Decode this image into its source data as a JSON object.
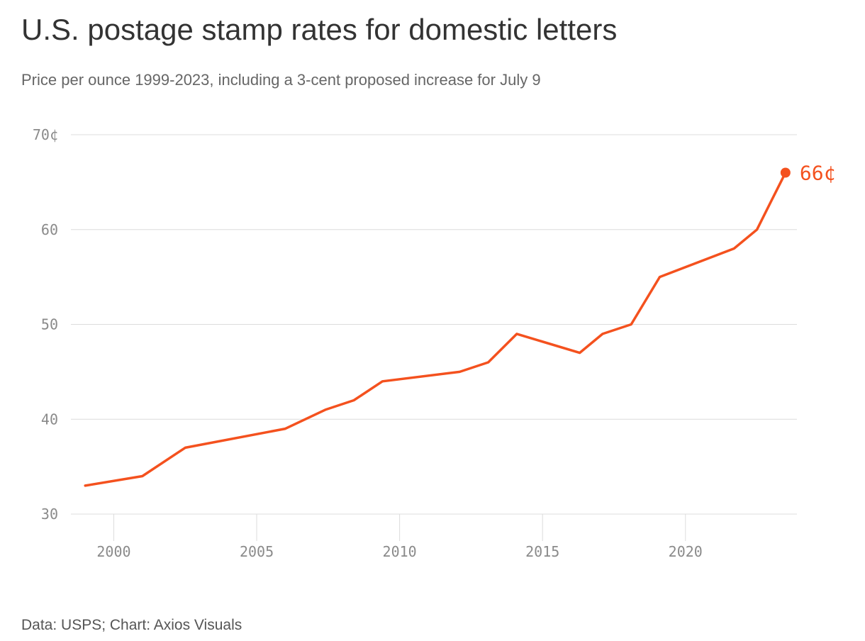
{
  "header": {
    "title": "U.S. postage stamp rates for domestic letters",
    "subtitle": "Price per ounce 1999-2023, including a 3-cent proposed increase for July 9"
  },
  "footer": {
    "source": "Data: USPS; Chart: Axios Visuals"
  },
  "colors": {
    "line": "#f4511e",
    "grid": "#dcdcdc",
    "tick_text": "#8a8a8a"
  },
  "chart_data": {
    "type": "line",
    "title": "U.S. postage stamp rates for domestic letters",
    "subtitle": "Price per ounce 1999-2023, including a 3-cent proposed increase for July 9",
    "xlabel": "",
    "ylabel": "",
    "x_ticks": [
      2000,
      2005,
      2010,
      2015,
      2020
    ],
    "x_tick_labels": [
      "2000",
      "2005",
      "2010",
      "2015",
      "2020"
    ],
    "y_ticks": [
      30,
      40,
      50,
      60,
      70
    ],
    "y_tick_labels": [
      "30",
      "40",
      "50",
      "60",
      "70¢"
    ],
    "xlim": [
      1998.5,
      2023.9
    ],
    "ylim": [
      30,
      70
    ],
    "grid": true,
    "series": [
      {
        "x": [
          1999.0,
          2001.0,
          2002.5,
          2006.0,
          2007.4,
          2008.4,
          2009.4,
          2012.1,
          2013.1,
          2014.1,
          2016.3,
          2017.1,
          2018.1,
          2019.1,
          2021.7,
          2022.5,
          2023.0,
          2023.5
        ],
        "values": [
          33,
          34,
          37,
          39,
          41,
          42,
          44,
          45,
          46,
          49,
          47,
          49,
          50,
          55,
          58,
          60,
          63,
          66
        ]
      }
    ],
    "end_label": "66¢"
  }
}
